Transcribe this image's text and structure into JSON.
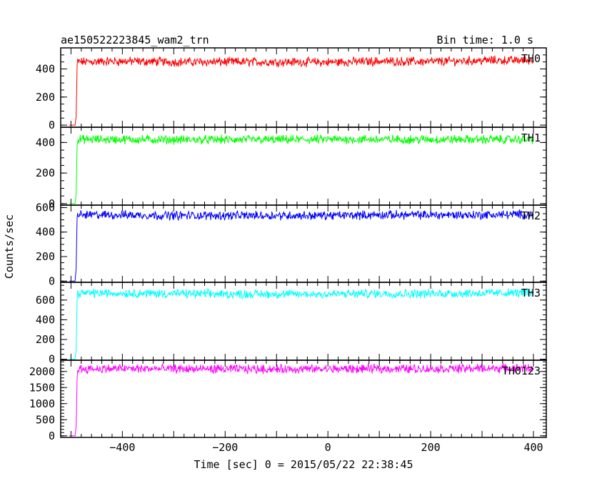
{
  "chart_data": {
    "type": "line",
    "title_left": "ae150522223845_wam2_trn",
    "title_right": "Bin time: 1.0 s",
    "xlabel": "Time [sec] 0 = 2015/05/22 22:38:45",
    "ylabel": "Counts/sec",
    "xlim": [
      -520,
      425
    ],
    "x_ticks": [
      -400,
      -200,
      0,
      200,
      400
    ],
    "x_tick_labels": [
      "−400",
      "−200",
      "0",
      "200",
      "400"
    ],
    "grid": false,
    "panels": [
      {
        "name": "TH0",
        "color": "#ff0000",
        "ylim": [
          -15,
          550
        ],
        "y_ticks": [
          0,
          200,
          400
        ],
        "y_tick_labels": [
          "0",
          "200",
          "400"
        ],
        "series": [
          {
            "x": -503,
            "y": 0
          },
          {
            "x": -492,
            "y": 0
          },
          {
            "x": -490,
            "y": 60
          },
          {
            "x": -488,
            "y": 420
          },
          {
            "x": -487,
            "y": 450
          },
          {
            "x": -400,
            "y": 455
          },
          {
            "x": -300,
            "y": 450
          },
          {
            "x": -200,
            "y": 450
          },
          {
            "x": -100,
            "y": 450
          },
          {
            "x": 0,
            "y": 448
          },
          {
            "x": 100,
            "y": 455
          },
          {
            "x": 200,
            "y": 452
          },
          {
            "x": 300,
            "y": 460
          },
          {
            "x": 400,
            "y": 462
          }
        ]
      },
      {
        "name": "TH1",
        "color": "#00ff00",
        "ylim": [
          -10,
          500
        ],
        "y_ticks": [
          0,
          200,
          400
        ],
        "y_tick_labels": [
          "0",
          "200",
          "400"
        ],
        "series": [
          {
            "x": -503,
            "y": 0
          },
          {
            "x": -492,
            "y": 0
          },
          {
            "x": -490,
            "y": 60
          },
          {
            "x": -488,
            "y": 400
          },
          {
            "x": -487,
            "y": 420
          },
          {
            "x": -400,
            "y": 420
          },
          {
            "x": -300,
            "y": 418
          },
          {
            "x": -200,
            "y": 418
          },
          {
            "x": -100,
            "y": 418
          },
          {
            "x": 0,
            "y": 420
          },
          {
            "x": 100,
            "y": 420
          },
          {
            "x": 200,
            "y": 420
          },
          {
            "x": 300,
            "y": 420
          },
          {
            "x": 400,
            "y": 420
          }
        ]
      },
      {
        "name": "TH2",
        "color": "#0000ff",
        "ylim": [
          -10,
          620
        ],
        "y_ticks": [
          0,
          200,
          400,
          600
        ],
        "y_tick_labels": [
          "0",
          "200",
          "400",
          "600"
        ],
        "series": [
          {
            "x": -503,
            "y": 0
          },
          {
            "x": -492,
            "y": 0
          },
          {
            "x": -490,
            "y": 100
          },
          {
            "x": -488,
            "y": 500
          },
          {
            "x": -487,
            "y": 540
          },
          {
            "x": -400,
            "y": 540
          },
          {
            "x": -300,
            "y": 535
          },
          {
            "x": -200,
            "y": 535
          },
          {
            "x": -100,
            "y": 535
          },
          {
            "x": 0,
            "y": 535
          },
          {
            "x": 100,
            "y": 540
          },
          {
            "x": 200,
            "y": 540
          },
          {
            "x": 300,
            "y": 540
          },
          {
            "x": 400,
            "y": 545
          }
        ]
      },
      {
        "name": "TH3",
        "color": "#00ffff",
        "ylim": [
          -10,
          780
        ],
        "y_ticks": [
          0,
          200,
          400,
          600
        ],
        "y_tick_labels": [
          "0",
          "200",
          "400",
          "600"
        ],
        "series": [
          {
            "x": -503,
            "y": 0
          },
          {
            "x": -492,
            "y": 0
          },
          {
            "x": -490,
            "y": 100
          },
          {
            "x": -488,
            "y": 600
          },
          {
            "x": -487,
            "y": 670
          },
          {
            "x": -400,
            "y": 670
          },
          {
            "x": -300,
            "y": 665
          },
          {
            "x": -200,
            "y": 660
          },
          {
            "x": -100,
            "y": 660
          },
          {
            "x": 0,
            "y": 660
          },
          {
            "x": 100,
            "y": 665
          },
          {
            "x": 200,
            "y": 665
          },
          {
            "x": 300,
            "y": 670
          },
          {
            "x": 400,
            "y": 675
          }
        ]
      },
      {
        "name": "TH0123",
        "color": "#ff00ff",
        "ylim": [
          -50,
          2350
        ],
        "y_ticks": [
          0,
          500,
          1000,
          1500,
          2000
        ],
        "y_tick_labels": [
          "0",
          "500",
          "1000",
          "1500",
          "2000"
        ],
        "series": [
          {
            "x": -503,
            "y": 0
          },
          {
            "x": -492,
            "y": 0
          },
          {
            "x": -490,
            "y": 300
          },
          {
            "x": -488,
            "y": 1900
          },
          {
            "x": -487,
            "y": 2080
          },
          {
            "x": -400,
            "y": 2090
          },
          {
            "x": -300,
            "y": 2080
          },
          {
            "x": -200,
            "y": 2075
          },
          {
            "x": -100,
            "y": 2075
          },
          {
            "x": 0,
            "y": 2075
          },
          {
            "x": 100,
            "y": 2085
          },
          {
            "x": 200,
            "y": 2085
          },
          {
            "x": 300,
            "y": 2095
          },
          {
            "x": 400,
            "y": 2105
          }
        ]
      }
    ]
  }
}
